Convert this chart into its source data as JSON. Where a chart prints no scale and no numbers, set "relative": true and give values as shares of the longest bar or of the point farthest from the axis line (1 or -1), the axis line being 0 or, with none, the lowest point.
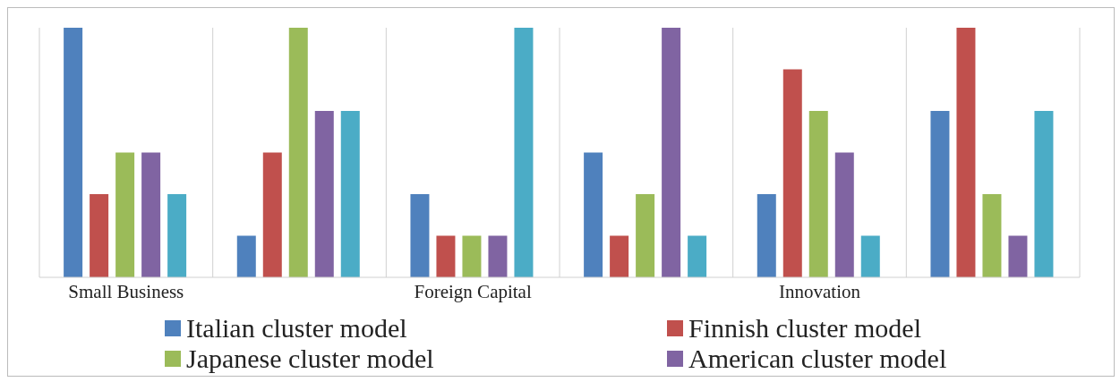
{
  "chart_data": {
    "type": "bar",
    "relative": true,
    "categories": [
      "Small Business",
      null,
      "Foreign Capital",
      null,
      "Innovation",
      null
    ],
    "series": [
      {
        "name": "Italian cluster model",
        "color": "#4f81bd",
        "values": [
          1,
          0.167,
          0.333,
          0.5,
          0.333,
          0.667
        ]
      },
      {
        "name": "Finnish cluster model",
        "color": "#c0504d",
        "values": [
          0.333,
          0.5,
          0.167,
          0.167,
          0.833,
          1
        ]
      },
      {
        "name": "Japanese cluster model",
        "color": "#9bbb59",
        "values": [
          0.5,
          1,
          0.167,
          0.333,
          0.667,
          0.333
        ]
      },
      {
        "name": "American cluster model",
        "color": "#8064a2",
        "values": [
          0.5,
          0.667,
          0.167,
          1,
          0.5,
          0.167
        ]
      },
      {
        "color": "#4bacc6",
        "values": [
          0.333,
          0.667,
          1,
          0.167,
          0.167,
          0.667
        ]
      }
    ],
    "grid": "x",
    "legend": "bottom"
  }
}
